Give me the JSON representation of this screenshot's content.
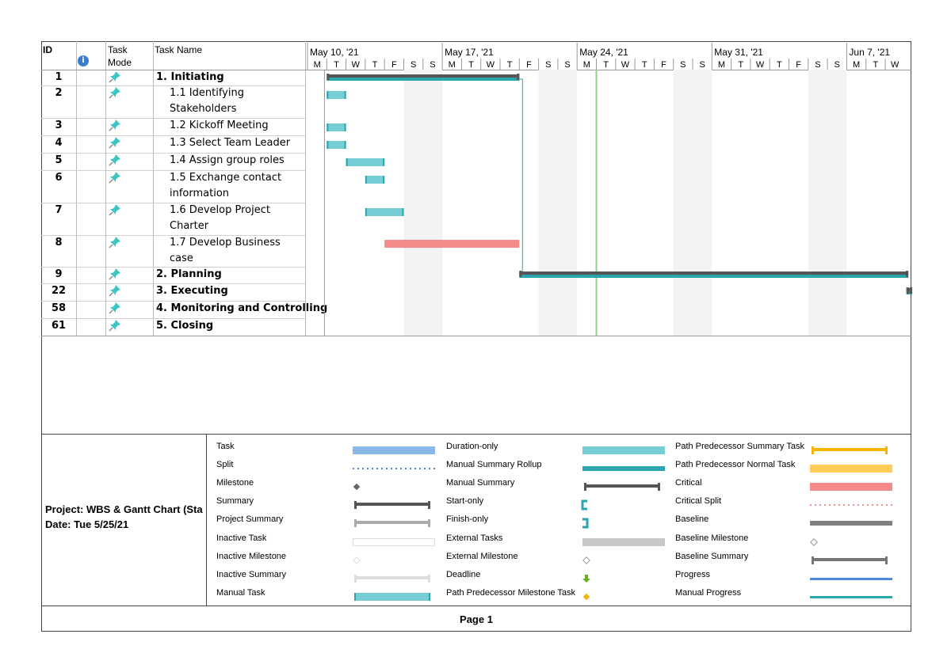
{
  "columns": {
    "id": "ID",
    "task_mode": "Task Mode",
    "task_name": "Task Name"
  },
  "timescale": {
    "weeks": [
      "May 10, '21",
      "May 17, '21",
      "May 24, '21",
      "May 31, '21",
      "Jun 7, '21"
    ],
    "days": [
      "M",
      "T",
      "W",
      "T",
      "F",
      "S",
      "S",
      "M",
      "T",
      "W",
      "T",
      "F",
      "S",
      "S",
      "M",
      "T",
      "W",
      "T",
      "F",
      "S",
      "S",
      "M",
      "T",
      "W",
      "T",
      "F",
      "S",
      "S",
      "M",
      "T",
      "W"
    ]
  },
  "tasks": [
    {
      "id": "1",
      "name": "1. Initiating",
      "bold": true,
      "start": 1,
      "end": 11,
      "type": "summary"
    },
    {
      "id": "2",
      "name": "1.1 Identifying Stakeholders",
      "start": 1,
      "end": 2,
      "type": "manual"
    },
    {
      "id": "3",
      "name": "1.2 Kickoff Meeting",
      "start": 1,
      "end": 2,
      "type": "manual"
    },
    {
      "id": "4",
      "name": "1.3 Select Team Leader",
      "start": 1,
      "end": 2,
      "type": "manual"
    },
    {
      "id": "5",
      "name": "1.4 Assign group roles",
      "start": 2,
      "end": 4,
      "type": "manual"
    },
    {
      "id": "6",
      "name": "1.5 Exchange contact information",
      "start": 3,
      "end": 4,
      "type": "manual"
    },
    {
      "id": "7",
      "name": "1.6 Develop Project Charter",
      "start": 3,
      "end": 5,
      "type": "manual"
    },
    {
      "id": "8",
      "name": "1.7 Develop Business case",
      "start": 4,
      "end": 11,
      "type": "critical"
    },
    {
      "id": "9",
      "name": "2. Planning",
      "bold": true,
      "start": 11,
      "end": 31.2,
      "type": "summary"
    },
    {
      "id": "22",
      "name": "3. Executing",
      "bold": true,
      "start": 31.1,
      "end": 31.4,
      "type": "summary"
    },
    {
      "id": "58",
      "name": "4. Monitoring and Controlling",
      "bold": true
    },
    {
      "id": "61",
      "name": "5. Closing",
      "bold": true
    }
  ],
  "status_day": 15,
  "footer": {
    "project": "Project: WBS & Gantt Chart (Sta",
    "date": "Date: Tue 5/25/21",
    "page": "Page 1"
  },
  "legend": [
    [
      "Task",
      "Split",
      "Milestone",
      "Summary",
      "Project Summary",
      "Inactive Task",
      "Inactive Milestone",
      "Inactive Summary",
      "Manual Task"
    ],
    [
      "Duration-only",
      "Manual Summary Rollup",
      "Manual Summary",
      "Start-only",
      "Finish-only",
      "External Tasks",
      "External Milestone",
      "Deadline",
      "Path Predecessor Milestone Task"
    ],
    [
      "Path Predecessor Summary Task",
      "Path Predecessor Normal Task",
      "Critical",
      "Critical Split",
      "Baseline",
      "Baseline Milestone",
      "Baseline Summary",
      "Progress",
      "Manual Progress"
    ]
  ],
  "colors": {
    "manual": "#76cdd3",
    "teal": "#2aa4ad",
    "critical": "#f48a8a",
    "summary": "#555555",
    "status": "#8cd08c",
    "weekend": "#f3f3f3"
  }
}
